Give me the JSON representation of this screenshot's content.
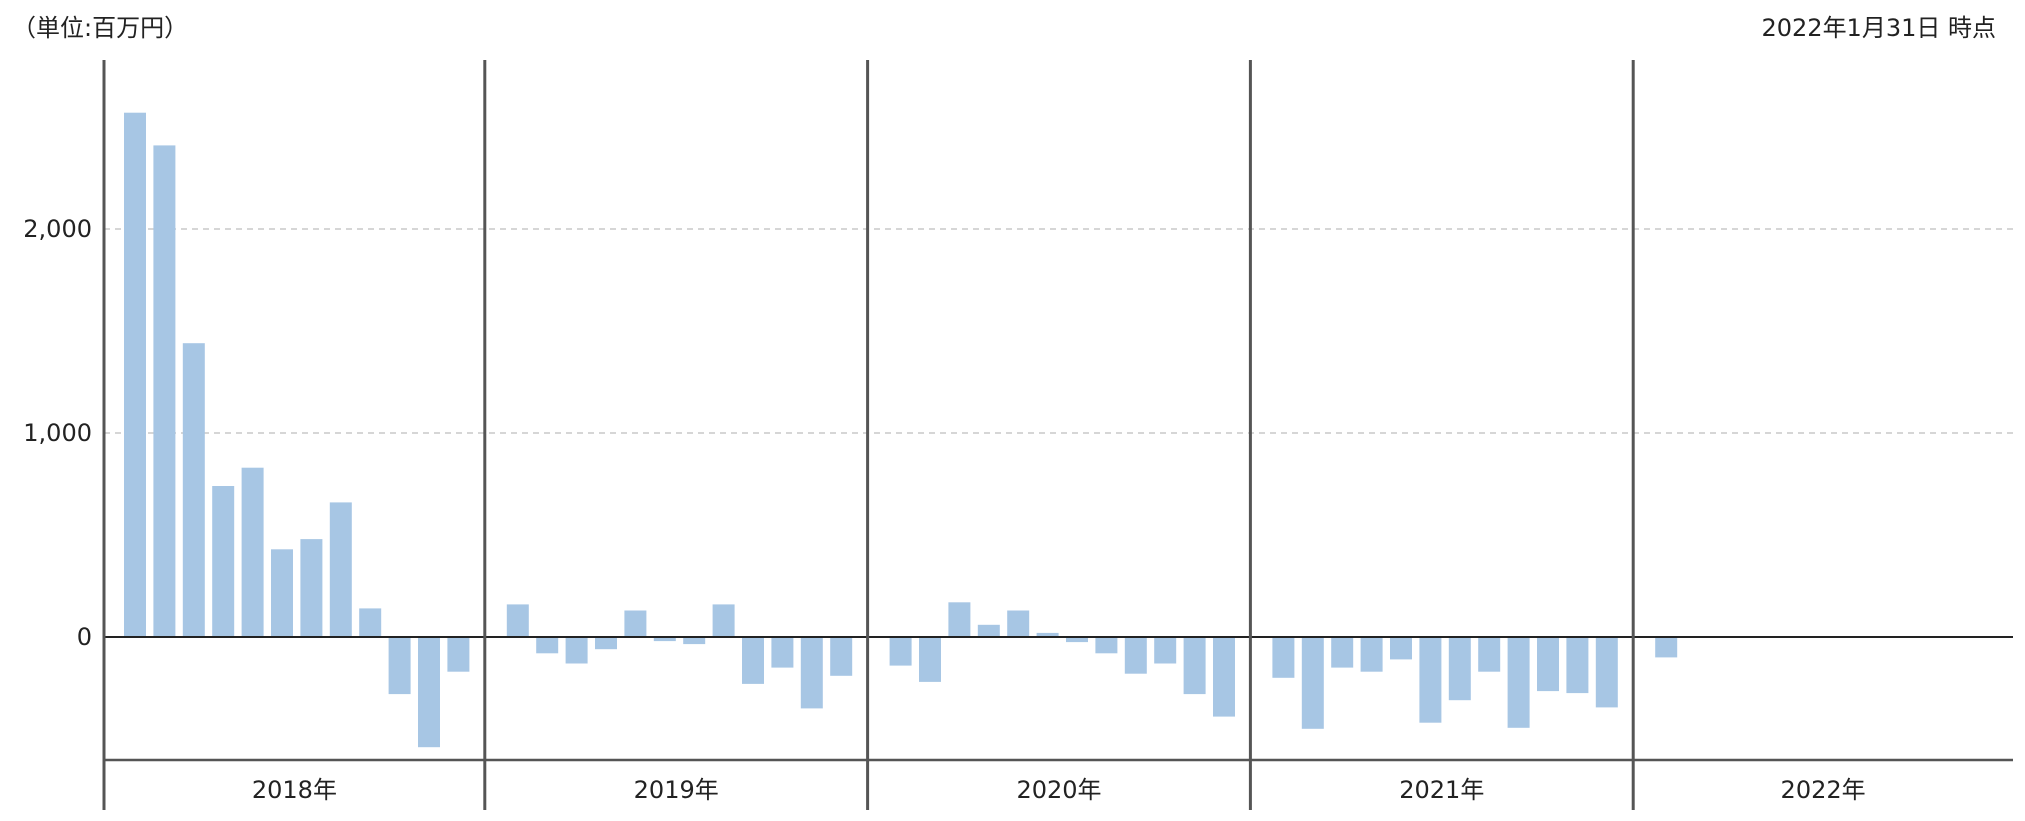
{
  "header": {
    "unit": "（単位:百万円）",
    "as_of": "2022年1月31日 時点"
  },
  "colors": {
    "bar": "#a7c6e4",
    "grid": "#c8c8c8",
    "axis": "#555555",
    "zero_line": "#222222"
  },
  "chart_data": {
    "type": "bar",
    "title": "",
    "xlabel": "",
    "ylabel": "",
    "ylim": [
      -600,
      2750
    ],
    "yticks": [
      0,
      1000,
      2000
    ],
    "ytick_labels": [
      "0",
      "1,000",
      "2,000"
    ],
    "grid": "horizontal-dashed",
    "year_labels": [
      "2018年",
      "2019年",
      "2020年",
      "2021年",
      "2022年"
    ],
    "categories": [
      "2018-01",
      "2018-02",
      "2018-03",
      "2018-04",
      "2018-05",
      "2018-06",
      "2018-07",
      "2018-08",
      "2018-09",
      "2018-10",
      "2018-11",
      "2018-12",
      "2019-01",
      "2019-02",
      "2019-03",
      "2019-04",
      "2019-05",
      "2019-06",
      "2019-07",
      "2019-08",
      "2019-09",
      "2019-10",
      "2019-11",
      "2019-12",
      "2020-01",
      "2020-02",
      "2020-03",
      "2020-04",
      "2020-05",
      "2020-06",
      "2020-07",
      "2020-08",
      "2020-09",
      "2020-10",
      "2020-11",
      "2020-12",
      "2021-01",
      "2021-02",
      "2021-03",
      "2021-04",
      "2021-05",
      "2021-06",
      "2021-07",
      "2021-08",
      "2021-09",
      "2021-10",
      "2021-11",
      "2021-12",
      "2022-01"
    ],
    "values": [
      2570,
      2410,
      1440,
      740,
      830,
      430,
      480,
      660,
      140,
      -280,
      -540,
      -170,
      160,
      -80,
      -130,
      -60,
      130,
      -20,
      -35,
      160,
      -230,
      -150,
      -350,
      -190,
      -140,
      -220,
      170,
      60,
      130,
      20,
      -25,
      -80,
      -180,
      -130,
      -280,
      -390,
      -200,
      -450,
      -150,
      -170,
      -110,
      -420,
      -310,
      -170,
      -445,
      -265,
      -275,
      -345,
      -100
    ]
  }
}
